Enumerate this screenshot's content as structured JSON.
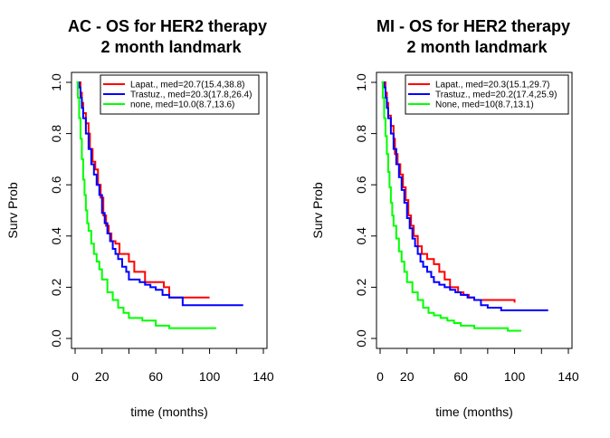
{
  "chart_data": [
    {
      "type": "line",
      "title": "AC - OS for HER2 therapy",
      "subtitle": "2 month landmark",
      "xlabel": "time (months)",
      "ylabel": "Surv Prob",
      "xlim": [
        0,
        140
      ],
      "ylim": [
        0,
        1
      ],
      "xticks": [
        0,
        20,
        60,
        100,
        140
      ],
      "xtick_labels": [
        "0",
        "20",
        "60",
        "100",
        "140"
      ],
      "yticks": [
        0.0,
        0.2,
        0.4,
        0.6,
        0.8,
        1.0
      ],
      "ytick_labels": [
        "0.0",
        "0.2",
        "0.4",
        "0.6",
        "0.8",
        "1.0"
      ],
      "legend_position": "top-right",
      "series": [
        {
          "name": "Lapat., med=20.7(15.4,38.8)",
          "color": "#ff0000",
          "x": [
            2,
            4,
            5,
            6,
            8,
            10,
            11,
            13,
            15,
            17,
            19,
            21,
            23,
            25,
            27,
            30,
            33,
            37,
            40,
            44,
            48,
            52,
            58,
            62,
            66,
            70,
            80,
            100
          ],
          "y": [
            1.0,
            0.96,
            0.92,
            0.88,
            0.84,
            0.8,
            0.74,
            0.69,
            0.66,
            0.6,
            0.55,
            0.48,
            0.44,
            0.41,
            0.38,
            0.37,
            0.33,
            0.33,
            0.3,
            0.26,
            0.26,
            0.22,
            0.22,
            0.22,
            0.2,
            0.16,
            0.16,
            0.16
          ]
        },
        {
          "name": "Trastuz., med=20.3(17.8,26.4)",
          "color": "#0000ff",
          "x": [
            2,
            3,
            4,
            5,
            6,
            8,
            10,
            12,
            14,
            16,
            18,
            20,
            22,
            24,
            26,
            28,
            30,
            32,
            35,
            38,
            40,
            44,
            48,
            52,
            56,
            60,
            65,
            70,
            80,
            90,
            100,
            110,
            125
          ],
          "y": [
            1.0,
            0.98,
            0.94,
            0.9,
            0.86,
            0.8,
            0.74,
            0.68,
            0.64,
            0.6,
            0.56,
            0.49,
            0.45,
            0.41,
            0.38,
            0.35,
            0.33,
            0.31,
            0.28,
            0.26,
            0.23,
            0.23,
            0.22,
            0.21,
            0.2,
            0.19,
            0.17,
            0.16,
            0.13,
            0.13,
            0.13,
            0.13,
            0.13
          ]
        },
        {
          "name": "none, med=10.0(8.7,13.6)",
          "color": "#00ff00",
          "x": [
            1,
            2,
            3,
            4,
            5,
            6,
            7,
            8,
            9,
            10,
            12,
            14,
            16,
            18,
            20,
            24,
            28,
            32,
            36,
            40,
            50,
            60,
            70,
            85,
            105
          ],
          "y": [
            1.0,
            0.94,
            0.86,
            0.78,
            0.7,
            0.62,
            0.56,
            0.5,
            0.45,
            0.42,
            0.37,
            0.33,
            0.3,
            0.27,
            0.23,
            0.18,
            0.15,
            0.12,
            0.1,
            0.08,
            0.07,
            0.05,
            0.04,
            0.04,
            0.04
          ]
        }
      ]
    },
    {
      "type": "line",
      "title": "MI - OS for HER2 therapy",
      "subtitle": "2 month landmark",
      "xlabel": "time (months)",
      "ylabel": "Surv Prob",
      "xlim": [
        0,
        140
      ],
      "ylim": [
        0,
        1
      ],
      "xticks": [
        0,
        20,
        60,
        100,
        140
      ],
      "xtick_labels": [
        "0",
        "20",
        "60",
        "100",
        "140"
      ],
      "yticks": [
        0.0,
        0.2,
        0.4,
        0.6,
        0.8,
        1.0
      ],
      "ytick_labels": [
        "0.0",
        "0.2",
        "0.4",
        "0.6",
        "0.8",
        "1.0"
      ],
      "legend_position": "top-right",
      "series": [
        {
          "name": "Lapat., med=20.3(15.1,29.7)",
          "color": "#ff0000",
          "x": [
            2,
            4,
            5,
            6,
            8,
            10,
            11,
            13,
            15,
            17,
            19,
            21,
            23,
            25,
            28,
            31,
            35,
            40,
            44,
            48,
            52,
            58,
            62,
            66,
            70,
            80,
            100
          ],
          "y": [
            1.0,
            0.96,
            0.92,
            0.87,
            0.83,
            0.78,
            0.72,
            0.68,
            0.64,
            0.59,
            0.54,
            0.48,
            0.44,
            0.4,
            0.36,
            0.33,
            0.31,
            0.29,
            0.26,
            0.23,
            0.2,
            0.18,
            0.17,
            0.16,
            0.15,
            0.15,
            0.14
          ]
        },
        {
          "name": "Trastuz., med=20.2(17.4,25.9)",
          "color": "#0000ff",
          "x": [
            2,
            3,
            4,
            5,
            6,
            8,
            10,
            12,
            14,
            16,
            18,
            20,
            22,
            24,
            26,
            28,
            30,
            32,
            35,
            38,
            40,
            44,
            48,
            52,
            56,
            60,
            65,
            70,
            75,
            80,
            90,
            100,
            110,
            125
          ],
          "y": [
            1.0,
            0.98,
            0.94,
            0.9,
            0.86,
            0.8,
            0.74,
            0.68,
            0.63,
            0.58,
            0.53,
            0.47,
            0.43,
            0.39,
            0.36,
            0.33,
            0.3,
            0.28,
            0.26,
            0.24,
            0.22,
            0.21,
            0.2,
            0.19,
            0.18,
            0.17,
            0.16,
            0.15,
            0.13,
            0.12,
            0.11,
            0.11,
            0.11,
            0.11
          ]
        },
        {
          "name": "None, med=10(8.7,13.1)",
          "color": "#00ff00",
          "x": [
            1,
            2,
            3,
            4,
            5,
            6,
            7,
            8,
            9,
            10,
            12,
            14,
            16,
            18,
            20,
            24,
            28,
            32,
            36,
            40,
            45,
            50,
            55,
            60,
            70,
            85,
            95,
            105
          ],
          "y": [
            1.0,
            0.94,
            0.86,
            0.79,
            0.72,
            0.65,
            0.59,
            0.53,
            0.48,
            0.44,
            0.39,
            0.34,
            0.3,
            0.26,
            0.22,
            0.18,
            0.15,
            0.12,
            0.1,
            0.09,
            0.08,
            0.07,
            0.06,
            0.05,
            0.04,
            0.04,
            0.03,
            0.03
          ]
        }
      ]
    }
  ]
}
